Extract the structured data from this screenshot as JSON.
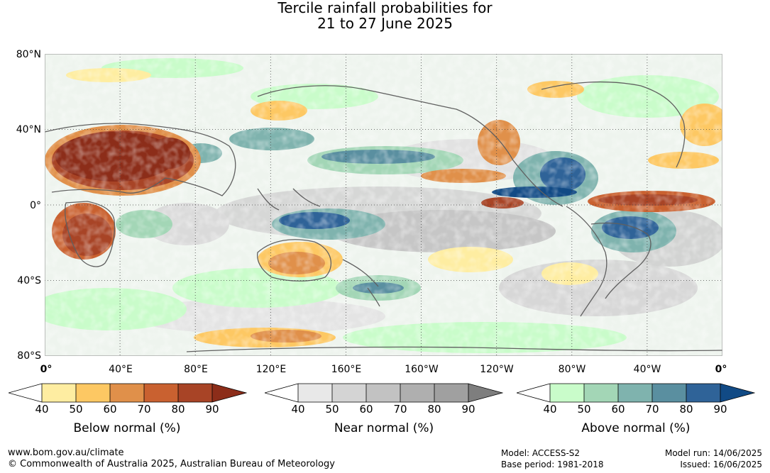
{
  "title": {
    "line1": "Tercile rainfall probabilities for",
    "line2": "21 to 27 June 2025"
  },
  "map": {
    "latitude_labels": [
      "80°N",
      "40°N",
      "0°",
      "40°S",
      "80°S"
    ],
    "longitude_labels": [
      "0°",
      "40°E",
      "80°E",
      "120°E",
      "160°E",
      "160°W",
      "120°W",
      "80°W",
      "40°W",
      "0°"
    ],
    "colors": {
      "ocean_background": "#f2f7f2",
      "land_outline": "#606060",
      "gridline": "#444444"
    }
  },
  "legends": [
    {
      "title": "Below normal (%)",
      "ticks": [
        "40",
        "50",
        "60",
        "70",
        "80",
        "90"
      ],
      "colors": [
        "#ffffff",
        "#feeda1",
        "#fdc863",
        "#e0904a",
        "#c96130",
        "#a84426",
        "#8c2d19"
      ]
    },
    {
      "title": "Near normal (%)",
      "ticks": [
        "40",
        "50",
        "60",
        "70",
        "80",
        "90"
      ],
      "colors": [
        "#ffffff",
        "#e8e8e8",
        "#d4d4d4",
        "#c2c2c2",
        "#afafaf",
        "#a0a0a0",
        "#7e7e7e"
      ]
    },
    {
      "title": "Above normal (%)",
      "ticks": [
        "40",
        "50",
        "60",
        "70",
        "80",
        "90"
      ],
      "colors": [
        "#ffffff",
        "#c9fcca",
        "#a3d6b6",
        "#7fb3ae",
        "#5a8fa0",
        "#2f6398",
        "#114a85"
      ]
    }
  ],
  "footer": {
    "website": "www.bom.gov.au/climate",
    "copyright": "© Commonwealth of Australia 2025, Australian Bureau of Meteorology",
    "model": "Model: ACCESS-S2",
    "base_period": "Base period: 1981-2018",
    "model_run": "Model run: 14/06/2025",
    "issued": "Issued: 16/06/2025"
  }
}
